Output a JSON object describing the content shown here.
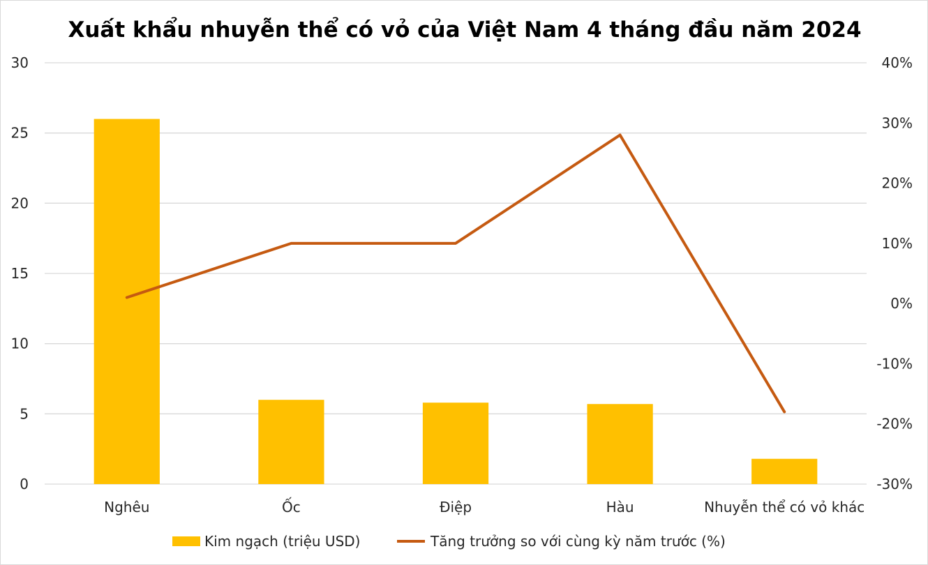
{
  "chart_data": {
    "type": "bar+line",
    "title": "Xuất khẩu nhuyễn thể có vỏ của Việt Nam 4 tháng đầu năm 2024",
    "categories": [
      "Nghêu",
      "Ốc",
      "Điệp",
      "Hàu",
      "Nhuyễn thể có vỏ khác"
    ],
    "series": [
      {
        "name": "Kim ngạch (triệu USD)",
        "type": "bar",
        "axis": "left",
        "color": "#FFC000",
        "values": [
          26.0,
          6.0,
          5.8,
          5.7,
          1.8
        ]
      },
      {
        "name": "Tăng trưởng so với cùng kỳ năm trước (%)",
        "type": "line",
        "axis": "right",
        "color": "#C55A11",
        "values": [
          1,
          10,
          10,
          28,
          -18
        ]
      }
    ],
    "y_left": {
      "min": 0,
      "max": 30,
      "ticks": [
        "0",
        "5",
        "10",
        "15",
        "20",
        "25",
        "30"
      ]
    },
    "y_right": {
      "min": -30,
      "max": 40,
      "ticks": [
        "-30%",
        "-20%",
        "-10%",
        "0%",
        "10%",
        "20%",
        "30%",
        "40%"
      ]
    },
    "grid": true,
    "gridline_color": "#d9d9d9",
    "legend_position": "bottom"
  }
}
